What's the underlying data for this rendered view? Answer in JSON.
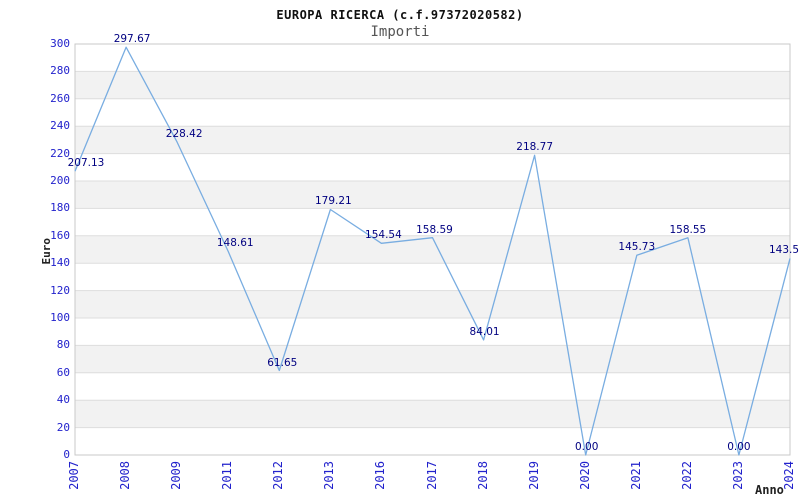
{
  "chart_data": {
    "type": "line",
    "title": "EUROPA RICERCA (c.f.97372020582)",
    "subtitle": "Importi",
    "xlabel": "Anno",
    "ylabel": "Euro",
    "categories": [
      "2007",
      "2008",
      "2009",
      "2011",
      "2012",
      "2013",
      "2016",
      "2017",
      "2018",
      "2019",
      "2020",
      "2021",
      "2022",
      "2023",
      "2024"
    ],
    "series": [
      {
        "name": "Importi",
        "values": [
          207.13,
          297.67,
          228.42,
          148.61,
          61.65,
          179.21,
          154.54,
          158.59,
          84.01,
          218.77,
          0.0,
          145.73,
          158.55,
          0.0,
          143.5
        ],
        "point_labels": [
          "207.13",
          "297.67",
          "228.42",
          "148.61",
          "61.65",
          "179.21",
          "154.54",
          "158.59",
          "84.01",
          "218.77",
          "0.00",
          "145.73",
          "158.55",
          "0.00",
          "143.5"
        ]
      }
    ],
    "ylim": [
      0,
      300
    ],
    "ytick_step": 20,
    "grid": "horizontal-gridlines-with-alternating-bands",
    "legend": "none",
    "markers": "none",
    "colors": {
      "line": "#79ade1",
      "tick_label": "#2222cc",
      "data_label": "#000080",
      "band": "#f2f2f2",
      "grid_line": "#dddddd",
      "plot_border": "#c9c9c9",
      "title": "#111111",
      "subtitle": "#555555",
      "axis_title": "#222222",
      "background": "#ffffff"
    }
  }
}
